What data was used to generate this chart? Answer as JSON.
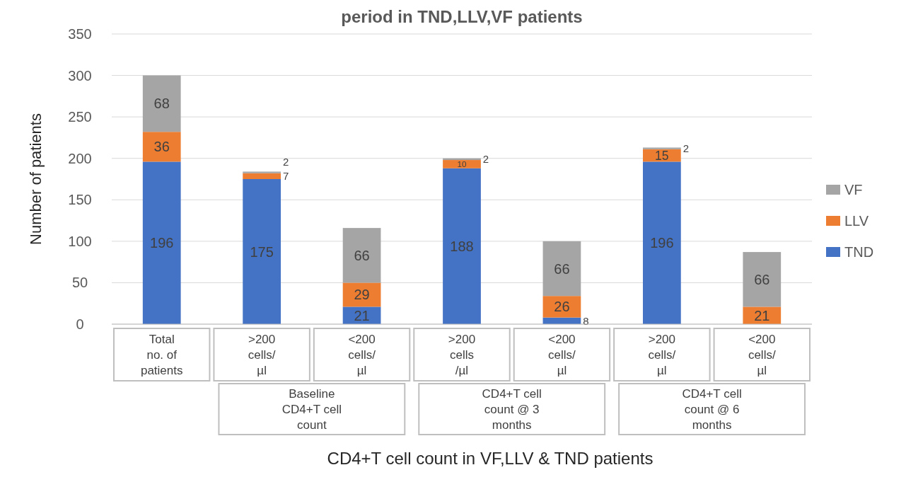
{
  "chart_data": {
    "type": "bar",
    "stacked": true,
    "title": "period in TND,LLV,VF patients",
    "xlabel": "CD4+T cell count in VF,LLV & TND patients",
    "ylabel": "Number of patients",
    "categories": [
      "Total no. of patients",
      ">200 cells/ µl",
      "<200 cells/ µl",
      ">200 cells /µl",
      "<200 cells/ µl",
      ">200 cells/ µl",
      "<200 cells/ µl"
    ],
    "annotations": [
      "Baseline CD4+T cell count",
      "CD4+T cell count @ 3 months",
      "CD4+T cell count @ 6 months"
    ],
    "series": [
      {
        "name": "TND",
        "color": "#4472c4",
        "values": [
          196,
          175,
          21,
          188,
          8,
          196,
          0
        ],
        "value_labels": [
          "196",
          "175",
          "21",
          "188",
          "8",
          "196",
          null
        ]
      },
      {
        "name": "LLV",
        "color": "#ed7d31",
        "values": [
          36,
          7,
          29,
          10,
          26,
          15,
          21
        ],
        "value_labels": [
          "36",
          "7",
          "29",
          "10",
          "26",
          "15",
          "21"
        ]
      },
      {
        "name": "VF",
        "color": "#a5a5a5",
        "values": [
          68,
          2,
          66,
          2,
          66,
          2,
          66
        ],
        "value_labels": [
          "68",
          "2",
          "66",
          "2",
          "66",
          "2",
          "66"
        ]
      }
    ],
    "ylim": [
      0,
      350
    ],
    "yticks": [
      0,
      50,
      100,
      150,
      200,
      250,
      300,
      350
    ],
    "grid": "y",
    "legend": "right"
  }
}
